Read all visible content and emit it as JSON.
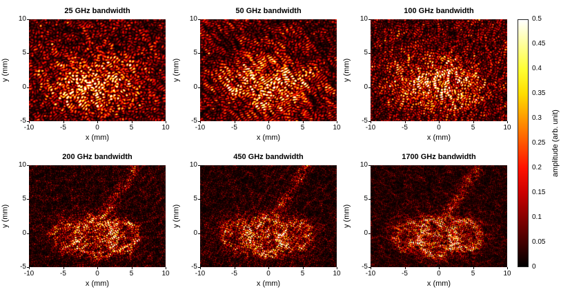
{
  "figure": {
    "background": "#ffffff"
  },
  "chart_data": {
    "type": "heatmap",
    "layout": {
      "rows": 2,
      "cols": 3,
      "colorbar_position": "right",
      "grid": false
    },
    "x": {
      "label": "x (mm)",
      "range": [
        -10,
        10
      ],
      "ticks": [
        -10,
        -5,
        0,
        5,
        10
      ],
      "tick_labels": [
        "-10",
        "-5",
        "0",
        "5",
        "10"
      ]
    },
    "y": {
      "label": "y (mm)",
      "range": [
        -5,
        10
      ],
      "ticks": [
        -5,
        0,
        5,
        10
      ],
      "tick_labels": [
        "-5",
        "0",
        "5",
        "10"
      ]
    },
    "colorbar": {
      "label": "amplitude (arb. unit)",
      "range": [
        0,
        0.5
      ],
      "ticks": [
        0,
        0.05,
        0.1,
        0.15,
        0.2,
        0.25,
        0.3,
        0.35,
        0.4,
        0.45,
        0.5
      ],
      "tick_labels": [
        "0",
        "0.05",
        "0.1",
        "0.15",
        "0.2",
        "0.25",
        "0.3",
        "0.35",
        "0.4",
        "0.45",
        "0.5"
      ],
      "colormap": "hot",
      "colormap_stops": [
        "#000000",
        "#ff0000",
        "#ffff00",
        "#ffffff"
      ]
    },
    "panels": [
      {
        "title": "25 GHz bandwidth",
        "row": 0,
        "col": 0,
        "render": {
          "seed": 101,
          "grain": 7.0,
          "style": "speckle-blob"
        }
      },
      {
        "title": "50 GHz bandwidth",
        "row": 0,
        "col": 1,
        "render": {
          "seed": 202,
          "grain": 6.5,
          "style": "speckle-blob"
        }
      },
      {
        "title": "100 GHz bandwidth",
        "row": 0,
        "col": 2,
        "render": {
          "seed": 303,
          "grain": 6.0,
          "style": "speckle-blob"
        }
      },
      {
        "title": "200 GHz bandwidth",
        "row": 1,
        "col": 0,
        "render": {
          "seed": 404,
          "grain": 5.0,
          "style": "speckle-rings"
        }
      },
      {
        "title": "450 GHz bandwidth",
        "row": 1,
        "col": 1,
        "render": {
          "seed": 505,
          "grain": 4.5,
          "style": "speckle-rings"
        }
      },
      {
        "title": "1700 GHz bandwidth",
        "row": 1,
        "col": 2,
        "render": {
          "seed": 606,
          "grain": 4.0,
          "style": "speckle-rings"
        }
      }
    ],
    "description": "Amplitude speckle patterns of holographic reconstructions for six spectral bandwidths (25-1700 GHz). Higher bandwidth suppresses speckle and reveals ring-shaped object structure. Hot colormap, amplitude 0 to 0.5 arb. unit."
  }
}
